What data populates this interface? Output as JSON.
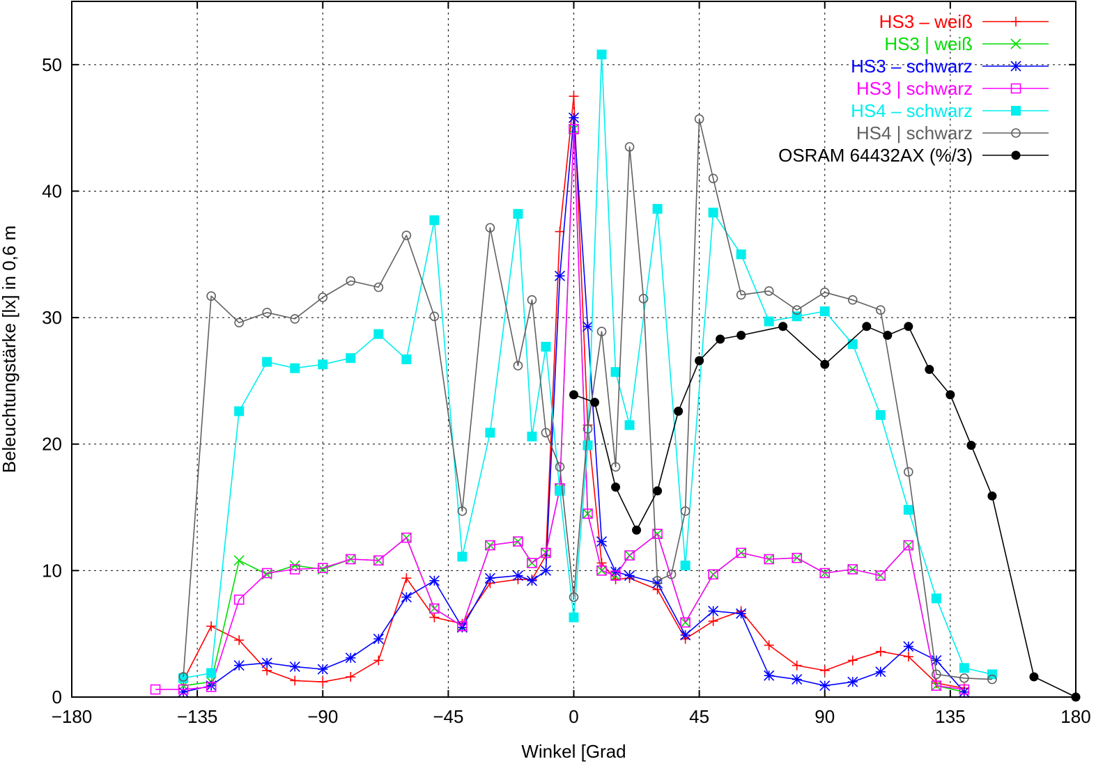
{
  "chart_data": {
    "type": "line",
    "title": "",
    "xlabel": "Winkel [Grad",
    "ylabel": "Beleuchtungstärke [lx] in 0,6 m",
    "xlim": [
      -180,
      180
    ],
    "ylim": [
      0,
      55
    ],
    "xticks": [
      -180,
      -135,
      -90,
      -45,
      0,
      45,
      90,
      135,
      180
    ],
    "xtick_labels": [
      "−180",
      "−135",
      "−90",
      "−45",
      "0",
      "45",
      "90",
      "135",
      "180"
    ],
    "yticks": [
      0,
      10,
      20,
      30,
      40,
      50
    ],
    "ytick_labels": [
      "0",
      "10",
      "20",
      "30",
      "40",
      "50"
    ],
    "grid": true,
    "legend_position": "top-right",
    "series": [
      {
        "name": "HS3 – weiß",
        "color": "#ff0000",
        "marker": "plus",
        "x": [
          -140,
          -130,
          -120,
          -110,
          -100,
          -90,
          -80,
          -70,
          -60,
          -50,
          -40,
          -30,
          -20,
          -15,
          -10,
          -5,
          0,
          5,
          10,
          15,
          20,
          30,
          40,
          50,
          60,
          70,
          80,
          90,
          100,
          110,
          120,
          130,
          140
        ],
        "y": [
          1.3,
          5.6,
          4.5,
          2.1,
          1.3,
          1.2,
          1.6,
          2.9,
          9.4,
          6.3,
          5.8,
          9.0,
          9.3,
          9.3,
          11.2,
          36.8,
          47.5,
          21.5,
          10.6,
          9.3,
          9.4,
          8.5,
          4.6,
          6.0,
          6.8,
          4.1,
          2.5,
          2.1,
          2.9,
          3.6,
          3.2,
          1.1,
          0.7
        ]
      },
      {
        "name": "HS3 | weiß",
        "color": "#00dd00",
        "marker": "cross",
        "x": [
          -140,
          -130,
          -120,
          -110,
          -100,
          -90,
          -80,
          -70,
          -60,
          -50,
          -40,
          -30,
          -20,
          -15,
          -10,
          -5,
          0,
          5,
          10,
          15,
          20,
          30,
          40,
          50,
          60,
          70,
          80,
          90,
          100,
          110,
          120,
          130,
          140
        ],
        "y": [
          0.9,
          1.2,
          10.8,
          9.7,
          10.4,
          10.1,
          10.9,
          10.8,
          12.6,
          7.0,
          5.6,
          12.0,
          12.3,
          10.6,
          11.4,
          16.5,
          44.9,
          14.5,
          10.0,
          9.6,
          11.2,
          12.9,
          5.9,
          9.7,
          11.4,
          10.9,
          11.0,
          9.8,
          10.1,
          9.6,
          12.0,
          0.9,
          0.4
        ]
      },
      {
        "name": "HS3 – schwarz",
        "color": "#0000ff",
        "marker": "star",
        "x": [
          -140,
          -130,
          -120,
          -110,
          -100,
          -90,
          -80,
          -70,
          -60,
          -50,
          -40,
          -30,
          -20,
          -15,
          -10,
          -5,
          0,
          5,
          10,
          15,
          20,
          30,
          40,
          50,
          60,
          70,
          80,
          90,
          100,
          110,
          120,
          130,
          140
        ],
        "y": [
          0.4,
          0.9,
          2.5,
          2.7,
          2.4,
          2.2,
          3.1,
          4.6,
          7.9,
          9.2,
          5.5,
          9.4,
          9.6,
          9.2,
          10.0,
          33.3,
          45.8,
          29.3,
          12.3,
          9.9,
          9.6,
          9.0,
          4.9,
          6.8,
          6.6,
          1.7,
          1.4,
          0.9,
          1.2,
          2.0,
          4.0,
          2.9,
          0.4
        ]
      },
      {
        "name": "HS3 | schwarz",
        "color": "#ff00ff",
        "marker": "open-square",
        "x": [
          -150,
          -140,
          -130,
          -120,
          -110,
          -100,
          -90,
          -80,
          -70,
          -60,
          -50,
          -40,
          -30,
          -20,
          -15,
          -10,
          -5,
          0,
          5,
          10,
          15,
          20,
          30,
          40,
          50,
          60,
          70,
          80,
          90,
          100,
          110,
          120,
          130,
          140
        ],
        "y": [
          0.6,
          0.6,
          0.8,
          7.7,
          9.8,
          10.1,
          10.2,
          10.9,
          10.8,
          12.6,
          7.0,
          5.6,
          12.0,
          12.3,
          10.6,
          11.4,
          16.5,
          44.9,
          14.5,
          10.0,
          9.6,
          11.2,
          12.9,
          5.9,
          9.7,
          11.4,
          10.9,
          11.0,
          9.8,
          10.1,
          9.6,
          12.0,
          0.9,
          0.6
        ]
      },
      {
        "name": "HS4 – schwarz",
        "color": "#00eeee",
        "marker": "filled-square",
        "x": [
          -140,
          -130,
          -120,
          -110,
          -100,
          -90,
          -80,
          -70,
          -60,
          -50,
          -40,
          -30,
          -20,
          -15,
          -10,
          -5,
          0,
          5,
          10,
          15,
          20,
          30,
          40,
          50,
          60,
          70,
          80,
          90,
          100,
          110,
          120,
          130,
          140,
          150
        ],
        "y": [
          1.5,
          1.9,
          22.6,
          26.5,
          26.0,
          26.3,
          26.8,
          28.7,
          26.7,
          37.7,
          11.1,
          20.9,
          38.2,
          20.6,
          27.7,
          16.3,
          6.3,
          19.9,
          50.8,
          25.7,
          21.5,
          38.6,
          10.4,
          38.3,
          35.0,
          29.7,
          30.1,
          30.5,
          27.9,
          22.3,
          14.8,
          7.8,
          2.3,
          1.8
        ]
      },
      {
        "name": "HS4 | schwarz",
        "color": "#606060",
        "marker": "open-circle",
        "x": [
          -140,
          -130,
          -120,
          -110,
          -100,
          -90,
          -80,
          -70,
          -60,
          -50,
          -40,
          -30,
          -20,
          -15,
          -10,
          -5,
          0,
          5,
          10,
          15,
          20,
          25,
          30,
          35,
          40,
          45,
          50,
          60,
          70,
          80,
          90,
          100,
          110,
          120,
          130,
          140,
          150
        ],
        "y": [
          1.6,
          31.7,
          29.6,
          30.4,
          29.9,
          31.6,
          32.9,
          32.4,
          36.5,
          30.1,
          14.7,
          37.1,
          26.2,
          31.4,
          20.9,
          18.2,
          7.9,
          21.2,
          28.9,
          18.2,
          43.5,
          31.5,
          9.2,
          9.7,
          14.7,
          45.7,
          41.0,
          31.8,
          32.1,
          30.6,
          32.0,
          31.4,
          30.6,
          17.8,
          1.8,
          1.5,
          1.4
        ]
      },
      {
        "name": "OSRAM 64432AX (%/3)",
        "color": "#000000",
        "marker": "filled-circle",
        "x": [
          0,
          7.5,
          15,
          22.5,
          30,
          37.5,
          45,
          52.5,
          60,
          75,
          90,
          105,
          112.5,
          120,
          127.5,
          135,
          142.5,
          150,
          165,
          180
        ],
        "y": [
          23.9,
          23.3,
          16.6,
          13.2,
          16.3,
          22.6,
          26.6,
          28.3,
          28.6,
          29.3,
          26.3,
          29.3,
          28.6,
          29.3,
          25.9,
          23.9,
          19.9,
          15.9,
          1.6,
          0
        ]
      }
    ]
  }
}
